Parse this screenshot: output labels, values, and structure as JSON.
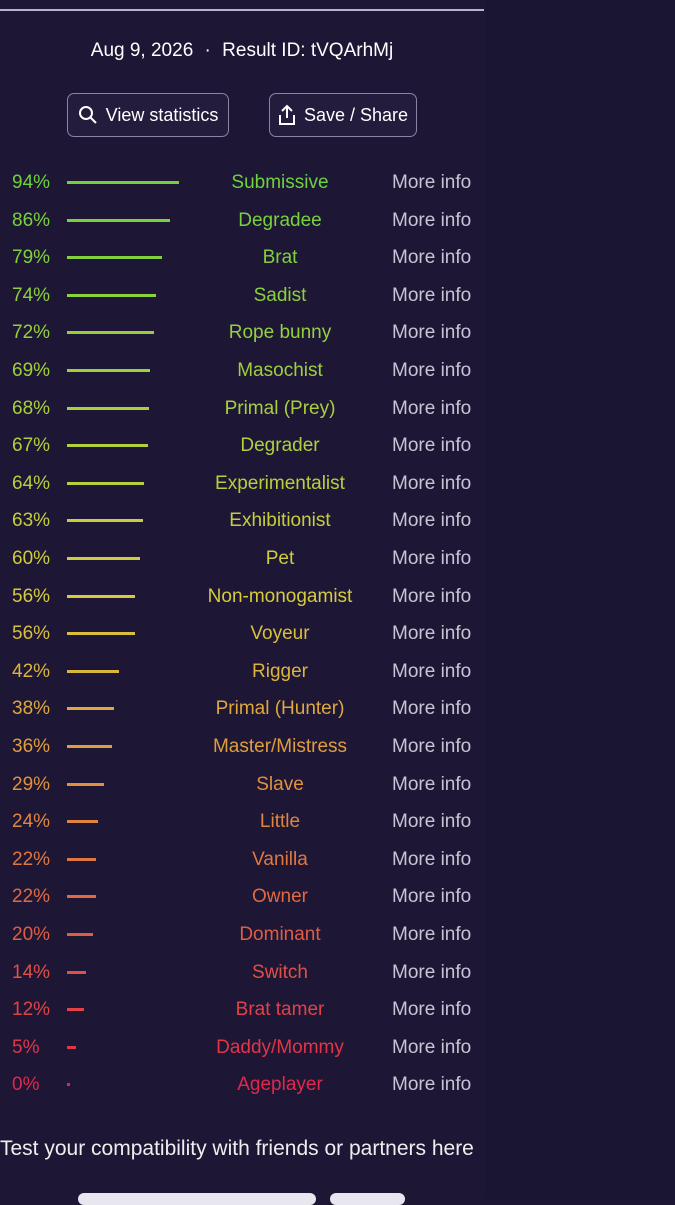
{
  "header": {
    "date": "Aug 9, 2026",
    "separator": "·",
    "result_id_label": "Result ID:",
    "result_id": "tVQArhMj"
  },
  "buttons": [
    "View statistics",
    "Save / Share"
  ],
  "results": [
    {
      "value": 94,
      "value_label": "94%",
      "name": "Submissive",
      "link": "More info"
    },
    {
      "value": 86,
      "value_label": "86%",
      "name": "Degradee",
      "link": "More info"
    },
    {
      "value": 79,
      "value_label": "79%",
      "name": "Brat",
      "link": "More info"
    },
    {
      "value": 74,
      "value_label": "74%",
      "name": "Sadist",
      "link": "More info"
    },
    {
      "value": 72,
      "value_label": "72%",
      "name": "Rope bunny",
      "link": "More info"
    },
    {
      "value": 69,
      "value_label": "69%",
      "name": "Masochist",
      "link": "More info"
    },
    {
      "value": 68,
      "value_label": "68%",
      "name": "Primal (Prey)",
      "link": "More info"
    },
    {
      "value": 67,
      "value_label": "67%",
      "name": "Degrader",
      "link": "More info"
    },
    {
      "value": 64,
      "value_label": "64%",
      "name": "Experimentalist",
      "link": "More info"
    },
    {
      "value": 63,
      "value_label": "63%",
      "name": "Exhibitionist",
      "link": "More info"
    },
    {
      "value": 60,
      "value_label": "60%",
      "name": "Pet",
      "link": "More info"
    },
    {
      "value": 56,
      "value_label": "56%",
      "name": "Non-monogamist",
      "link": "More info"
    },
    {
      "value": 56,
      "value_label": "56%",
      "name": "Voyeur",
      "link": "More info"
    },
    {
      "value": 42,
      "value_label": "42%",
      "name": "Rigger",
      "link": "More info"
    },
    {
      "value": 38,
      "value_label": "38%",
      "name": "Primal (Hunter)",
      "link": "More info"
    },
    {
      "value": 36,
      "value_label": "36%",
      "name": "Master/Mistress",
      "link": "More info"
    },
    {
      "value": 29,
      "value_label": "29%",
      "name": "Slave",
      "link": "More info"
    },
    {
      "value": 24,
      "value_label": "24%",
      "name": "Little",
      "link": "More info"
    },
    {
      "value": 22,
      "value_label": "22%",
      "name": "Vanilla",
      "link": "More info"
    },
    {
      "value": 22,
      "value_label": "22%",
      "name": "Owner",
      "link": "More info"
    },
    {
      "value": 20,
      "value_label": "20%",
      "name": "Dominant",
      "link": "More info"
    },
    {
      "value": 14,
      "value_label": "14%",
      "name": "Switch",
      "link": "More info"
    },
    {
      "value": 12,
      "value_label": "12%",
      "name": "Brat tamer",
      "link": "More info"
    },
    {
      "value": 5,
      "value_label": "5%",
      "name": "Daddy/Mommy",
      "link": "More info"
    },
    {
      "value": 0,
      "value_label": "0%",
      "name": "Ageplayer",
      "link": "More info"
    }
  ],
  "footer": "Test your compatibility with friends or partners here"
}
